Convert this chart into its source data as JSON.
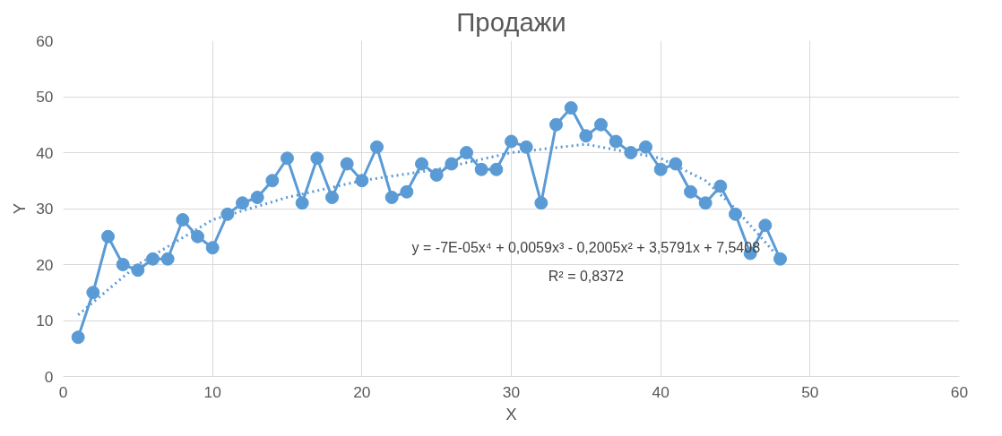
{
  "chart_data": {
    "type": "line",
    "title": "Продажи",
    "xlabel": "X",
    "ylabel": "Y",
    "xlim": [
      0,
      60
    ],
    "xticks": [
      0,
      10,
      20,
      30,
      40,
      50,
      60
    ],
    "ylim": [
      0,
      60
    ],
    "yticks": [
      0,
      10,
      20,
      30,
      40,
      50,
      60
    ],
    "grid": true,
    "annotations": [
      "y = -7E-05x⁴ + 0,0059x³ - 0,2005x² + 3,5791x + 7,5408",
      "R² = 0,8372"
    ],
    "series": [
      {
        "color": "#5b9bd5",
        "marker": "circle",
        "line_style": "solid",
        "x": [
          1,
          2,
          3,
          4,
          5,
          6,
          7,
          8,
          9,
          10,
          11,
          12,
          13,
          14,
          15,
          16,
          17,
          18,
          19,
          20,
          21,
          22,
          23,
          24,
          25,
          26,
          27,
          28,
          29,
          30,
          31,
          32,
          33,
          34,
          35,
          36,
          37,
          38,
          39,
          40,
          41,
          42,
          43,
          44,
          45,
          46,
          47,
          48
        ],
        "values": [
          7,
          15,
          25,
          20,
          19,
          21,
          21,
          28,
          25,
          23,
          29,
          31,
          32,
          35,
          39,
          31,
          39,
          32,
          38,
          35,
          41,
          32,
          33,
          38,
          36,
          38,
          40,
          37,
          37,
          42,
          41,
          31,
          45,
          48,
          43,
          45,
          42,
          40,
          41,
          37,
          38,
          33,
          31,
          34,
          29,
          22,
          27,
          21
        ]
      },
      {
        "color": "#5b9bd5",
        "marker": "none",
        "line_style": "dotted",
        "x": [
          1,
          5,
          10,
          15,
          20,
          25,
          30,
          35,
          40,
          43,
          45,
          48
        ],
        "values": [
          11,
          20,
          28,
          32,
          35,
          37,
          40,
          41.5,
          39,
          35,
          30,
          21
        ]
      }
    ]
  }
}
